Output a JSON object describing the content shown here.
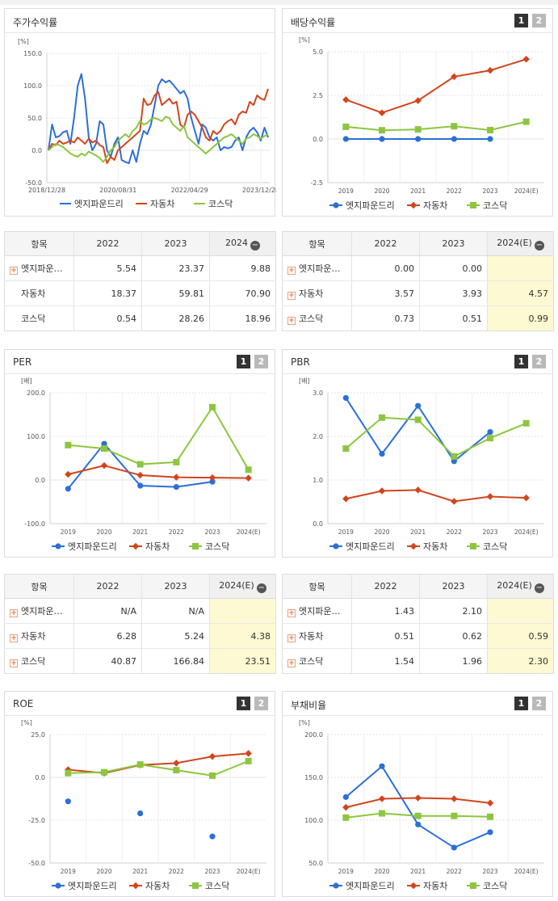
{
  "colors": {
    "s1": "#2b6fd8",
    "s2": "#d2451c",
    "s3": "#8cc63f"
  },
  "legend": [
    "엣지파운드리",
    "자동차",
    "코스닥"
  ],
  "pager": [
    "1",
    "2"
  ],
  "stock_chart": {
    "title": "주가수익률",
    "unit": "[%]",
    "type": "line",
    "x_ticks": [
      "2018/12/28",
      "2020/08/31",
      "2022/04/29",
      "2023/12/28"
    ],
    "y_ticks": [
      "150.0",
      "100.0",
      "50.0",
      "0.0",
      "-50.0"
    ],
    "ylim": [
      -50,
      150
    ],
    "chart_data": {
      "type": "line",
      "series": [
        {
          "name": "엣지파운드리",
          "values": [
            0,
            40,
            20,
            22,
            28,
            30,
            10,
            50,
            100,
            118,
            80,
            20,
            0,
            10,
            45,
            40,
            0,
            -10,
            10,
            20,
            -15,
            -18,
            -20,
            0,
            -18,
            10,
            30,
            25,
            40,
            70,
            100,
            110,
            105,
            108,
            102,
            95,
            88,
            92,
            80,
            50,
            30,
            10,
            40,
            35,
            20,
            15,
            20,
            0,
            5,
            3,
            5,
            15,
            20,
            0,
            20,
            30,
            35,
            28,
            15,
            35,
            20
          ]
        },
        {
          "name": "자동차",
          "values": [
            0,
            10,
            8,
            15,
            10,
            12,
            15,
            12,
            20,
            15,
            10,
            18,
            12,
            15,
            8,
            5,
            -20,
            -10,
            -15,
            0,
            5,
            10,
            15,
            20,
            25,
            30,
            80,
            70,
            72,
            85,
            90,
            70,
            75,
            80,
            72,
            75,
            40,
            35,
            55,
            60,
            55,
            45,
            35,
            20,
            15,
            30,
            25,
            30,
            40,
            45,
            48,
            40,
            55,
            60,
            58,
            75,
            70,
            85,
            80,
            78,
            95
          ]
        },
        {
          "name": "코스닥",
          "values": [
            0,
            5,
            10,
            8,
            5,
            0,
            -5,
            -8,
            -10,
            -5,
            -8,
            -2,
            -5,
            -8,
            -12,
            -18,
            -10,
            0,
            5,
            15,
            20,
            25,
            20,
            30,
            35,
            45,
            40,
            42,
            48,
            50,
            48,
            45,
            52,
            50,
            40,
            35,
            30,
            38,
            20,
            15,
            10,
            5,
            0,
            -5,
            0,
            5,
            10,
            15,
            20,
            22,
            25,
            20,
            15,
            10,
            18,
            20,
            25,
            22,
            18,
            22,
            25
          ]
        }
      ]
    }
  },
  "stock_table": {
    "headers": [
      "항목",
      "2022",
      "2023",
      "2024"
    ],
    "rows": [
      {
        "name": "엣지파운…",
        "v": [
          "5.54",
          "23.37",
          "9.88"
        ],
        "plus": true
      },
      {
        "name": "자동차",
        "v": [
          "18.37",
          "59.81",
          "70.90"
        ],
        "plus": false
      },
      {
        "name": "코스닥",
        "v": [
          "0.54",
          "28.26",
          "18.96"
        ],
        "plus": false
      }
    ]
  },
  "dividend_chart": {
    "title": "배당수익률",
    "unit": "[%]",
    "y_ticks": [
      "5.0",
      "2.5",
      "0.0",
      "-2.5"
    ],
    "ylim": [
      -2.5,
      5
    ],
    "categories": [
      "2019",
      "2020",
      "2021",
      "2022",
      "2023",
      "2024(E)"
    ],
    "chart_data": {
      "type": "line",
      "categories": [
        "2019",
        "2020",
        "2021",
        "2022",
        "2023",
        "2024(E)"
      ],
      "series": [
        {
          "name": "엣지파운드리",
          "values": [
            0.0,
            0.0,
            0.0,
            0.0,
            0.0,
            null
          ]
        },
        {
          "name": "자동차",
          "values": [
            2.25,
            1.5,
            2.2,
            3.57,
            3.93,
            4.57
          ]
        },
        {
          "name": "코스닥",
          "values": [
            0.7,
            0.5,
            0.55,
            0.73,
            0.51,
            0.99
          ]
        }
      ]
    }
  },
  "dividend_table": {
    "headers": [
      "항목",
      "2022",
      "2023",
      "2024(E)"
    ],
    "rows": [
      {
        "name": "엣지파운…",
        "v": [
          "0.00",
          "0.00",
          ""
        ],
        "plus": true
      },
      {
        "name": "자동차",
        "v": [
          "3.57",
          "3.93",
          "4.57"
        ],
        "plus": true
      },
      {
        "name": "코스닥",
        "v": [
          "0.73",
          "0.51",
          "0.99"
        ],
        "plus": true
      }
    ]
  },
  "per_chart": {
    "title": "PER",
    "unit": "[배]",
    "y_ticks": [
      "200.0",
      "100.0",
      "0.0",
      "-100.0"
    ],
    "ylim": [
      -100,
      200
    ],
    "categories": [
      "2019",
      "2020",
      "2021",
      "2022",
      "2023",
      "2024(E)"
    ],
    "chart_data": {
      "type": "line",
      "categories": [
        "2019",
        "2020",
        "2021",
        "2022",
        "2023",
        "2024(E)"
      ],
      "series": [
        {
          "name": "엣지파운드리",
          "values": [
            -20,
            83,
            -13,
            -16,
            -4,
            null
          ]
        },
        {
          "name": "자동차",
          "values": [
            13,
            33,
            11,
            6.28,
            5.24,
            4.38
          ]
        },
        {
          "name": "코스닥",
          "values": [
            80,
            72,
            36,
            40.87,
            166.84,
            23.51
          ]
        }
      ]
    }
  },
  "per_table": {
    "headers": [
      "항목",
      "2022",
      "2023",
      "2024(E)"
    ],
    "rows": [
      {
        "name": "엣지파운…",
        "v": [
          "N/A",
          "N/A",
          ""
        ],
        "plus": true
      },
      {
        "name": "자동차",
        "v": [
          "6.28",
          "5.24",
          "4.38"
        ],
        "plus": true
      },
      {
        "name": "코스닥",
        "v": [
          "40.87",
          "166.84",
          "23.51"
        ],
        "plus": true
      }
    ]
  },
  "pbr_chart": {
    "title": "PBR",
    "unit": "[배]",
    "y_ticks": [
      "3.0",
      "2.0",
      "1.0",
      "0.0"
    ],
    "ylim": [
      0,
      3
    ],
    "categories": [
      "2019",
      "2020",
      "2021",
      "2022",
      "2023",
      "2024(E)"
    ],
    "chart_data": {
      "type": "line",
      "categories": [
        "2019",
        "2020",
        "2021",
        "2022",
        "2023",
        "2024(E)"
      ],
      "series": [
        {
          "name": "엣지파운드리",
          "values": [
            2.88,
            1.6,
            2.7,
            1.43,
            2.1,
            null
          ]
        },
        {
          "name": "자동차",
          "values": [
            0.57,
            0.75,
            0.77,
            0.51,
            0.62,
            0.59
          ]
        },
        {
          "name": "코스닥",
          "values": [
            1.72,
            2.43,
            2.38,
            1.54,
            1.96,
            2.3
          ]
        }
      ]
    }
  },
  "pbr_table": {
    "headers": [
      "항목",
      "2022",
      "2023",
      "2024(E)"
    ],
    "rows": [
      {
        "name": "엣지파운…",
        "v": [
          "1.43",
          "2.10",
          ""
        ],
        "plus": true
      },
      {
        "name": "자동차",
        "v": [
          "0.51",
          "0.62",
          "0.59"
        ],
        "plus": true
      },
      {
        "name": "코스닥",
        "v": [
          "1.54",
          "1.96",
          "2.30"
        ],
        "plus": true
      }
    ]
  },
  "roe_chart": {
    "title": "ROE",
    "unit": "[%]",
    "y_ticks": [
      "25.0",
      "0.0",
      "-25.0",
      "-50.0"
    ],
    "ylim": [
      -50,
      25
    ],
    "categories": [
      "2019",
      "2020",
      "2021",
      "2022",
      "2023",
      "2024(E)"
    ],
    "chart_data": {
      "type": "line",
      "categories": [
        "2019",
        "2020",
        "2021",
        "2022",
        "2023",
        "2024(E)"
      ],
      "series": [
        {
          "name": "엣지파운드리",
          "values": [
            -14,
            null,
            -21,
            null,
            -34.5,
            null
          ],
          "points_only": true
        },
        {
          "name": "자동차",
          "values": [
            4.5,
            2.5,
            7.2,
            8.3,
            12.2,
            14
          ]
        },
        {
          "name": "코스닥",
          "values": [
            2.5,
            3,
            7.5,
            4.2,
            1,
            9.5
          ]
        }
      ]
    }
  },
  "debt_chart": {
    "title": "부채비율",
    "unit": "[%]",
    "y_ticks": [
      "200.0",
      "150.0",
      "100.0",
      "50.0"
    ],
    "ylim": [
      50,
      200
    ],
    "categories": [
      "2019",
      "2020",
      "2021",
      "2022",
      "2023",
      "2024(E)"
    ],
    "chart_data": {
      "type": "line",
      "categories": [
        "2019",
        "2020",
        "2021",
        "2022",
        "2023",
        "2024(E)"
      ],
      "series": [
        {
          "name": "엣지파운드리",
          "values": [
            127,
            163,
            95,
            68,
            86,
            null
          ]
        },
        {
          "name": "자동차",
          "values": [
            115,
            125,
            126,
            125,
            120,
            null
          ]
        },
        {
          "name": "코스닥",
          "values": [
            103,
            108,
            105,
            105,
            104,
            null
          ]
        }
      ]
    }
  }
}
